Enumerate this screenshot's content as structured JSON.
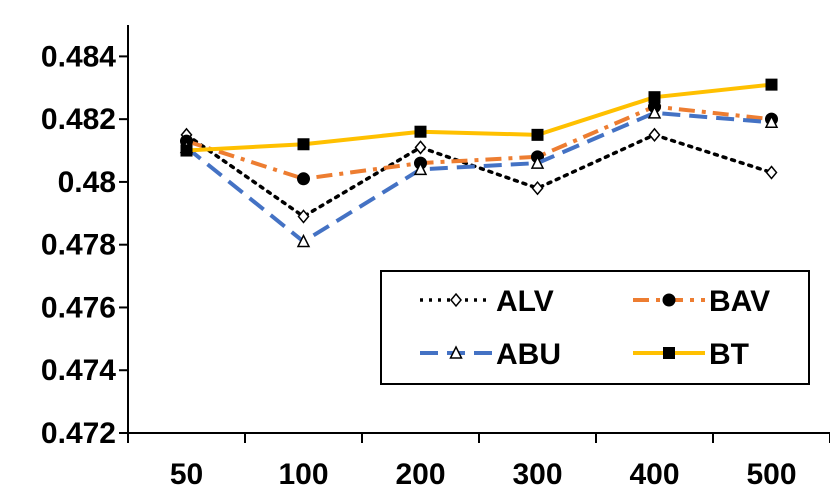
{
  "chart_data": {
    "type": "line",
    "title": "",
    "xlabel": "",
    "ylabel": "",
    "categories": [
      "50",
      "100",
      "200",
      "300",
      "400",
      "500"
    ],
    "ylim": [
      0.472,
      0.485
    ],
    "yticks": [
      0.472,
      0.474,
      0.476,
      0.478,
      0.48,
      0.482,
      0.484
    ],
    "ytick_labels": [
      "0.472",
      "0.474",
      "0.476",
      "0.478",
      "0.48",
      "0.482",
      "0.484"
    ],
    "grid": false,
    "legend_position": "lower-right",
    "series": [
      {
        "name": "ALV",
        "values": [
          0.4815,
          0.4789,
          0.4811,
          0.4798,
          0.4815,
          0.4803
        ],
        "color": "#000000",
        "dash": "dotted",
        "marker": "diamond-open"
      },
      {
        "name": "BAV",
        "values": [
          0.4813,
          0.4801,
          0.4806,
          0.4808,
          0.4824,
          0.482
        ],
        "color": "#ED7D31",
        "dash": "dash-dot",
        "marker": "circle"
      },
      {
        "name": "ABU",
        "values": [
          0.4811,
          0.4781,
          0.4804,
          0.4806,
          0.4822,
          0.4819
        ],
        "color": "#4472C4",
        "dash": "dashed",
        "marker": "triangle-open"
      },
      {
        "name": "BT",
        "values": [
          0.481,
          0.4812,
          0.4816,
          0.4815,
          0.4827,
          0.4831
        ],
        "color": "#FFC000",
        "dash": "solid",
        "marker": "square"
      }
    ]
  }
}
